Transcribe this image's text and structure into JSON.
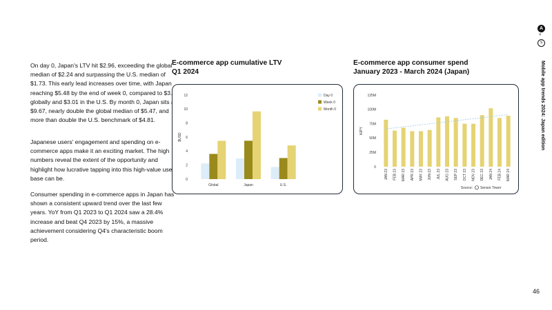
{
  "text": {
    "p1": "On day 0, Japan's LTV hit $2.96, exceeding the global median of $2.24 and surpassing the U.S. median of $1.73. This early lead increases over time, with Japan reaching $5.48 by the end of week 0, compared to $3.6 globally and $3.01 in the U.S. By month 0, Japan sits at $9.67, nearly double the global median of $5.47, and more than double the U.S. benchmark of $4.81.",
    "p2": "Japanese users' engagement and spending on e-commerce apps make it an exciting market. The high numbers reveal the extent of the opportunity and highlight how lucrative tapping into this high-value user base can be.",
    "p3": "Consumer spending in e-commerce apps in Japan has shown a consistent upward trend over the last few years. YoY from Q1 2023 to Q1 2024 saw a 28.4% increase and beat Q4 2023 by 15%, a massive achievement considering Q4's characteristic boom period."
  },
  "sidebar": {
    "logo": "A",
    "x": "×",
    "logo2": "S",
    "title": "Mobile app trends 2024: Japan edition",
    "page_number": "46"
  },
  "chart_data": [
    {
      "type": "bar",
      "title": "E-commerce app cumulative LTV",
      "subtitle": "Q1 2024",
      "ylabel": "$USD",
      "xlabel": "",
      "categories": [
        "Global",
        "Japan",
        "U.S."
      ],
      "series": [
        {
          "name": "Day 0",
          "values": [
            2.24,
            2.96,
            1.73
          ],
          "color": "#dcedf9"
        },
        {
          "name": "Week 0",
          "values": [
            3.6,
            5.48,
            3.01
          ],
          "color": "#9a8a1c"
        },
        {
          "name": "Month 0",
          "values": [
            5.47,
            9.67,
            4.81
          ],
          "color": "#e5d374"
        }
      ],
      "ylim": [
        0,
        12
      ],
      "yticks": [
        0,
        2,
        4,
        6,
        8,
        10,
        12
      ],
      "ytick_labels": [
        "0",
        "2",
        "4",
        "6",
        "8",
        "10",
        "12"
      ],
      "grid": false,
      "legend": "top-right"
    },
    {
      "type": "bar",
      "title": "E-commerce app consumer spend",
      "subtitle": "January 2023 - March 2024 (Japan)",
      "ylabel": "¥JPY",
      "xlabel": "",
      "categories": [
        "JAN 23",
        "FEB 23",
        "MAR 23",
        "APR 23",
        "MAY 23",
        "JUN 23",
        "JUL 23",
        "AUG 23",
        "SEP 23",
        "OCT 23",
        "NOV 23",
        "DEC 23",
        "JAN 24",
        "FEB 24",
        "MAR 24"
      ],
      "values": [
        82,
        63,
        68,
        62,
        62,
        64,
        86,
        88,
        85,
        75,
        75,
        90,
        102,
        85,
        89
      ],
      "color": "#e5d374",
      "trendline": {
        "start": 66,
        "end": 91,
        "color": "#a8cde6"
      },
      "ylim": [
        0,
        125
      ],
      "yticks": [
        0,
        25,
        50,
        75,
        100,
        125
      ],
      "ytick_labels": [
        "0",
        "25M",
        "50M",
        "75M",
        "100M",
        "125M"
      ],
      "grid": false,
      "source_label": "Source:",
      "source_name": "Sensor Tower"
    }
  ]
}
